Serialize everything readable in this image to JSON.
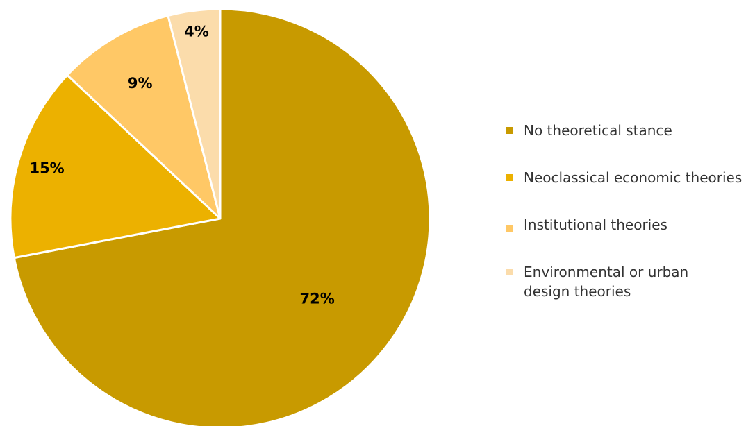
{
  "chart_data": {
    "type": "pie",
    "title": "",
    "slices": [
      {
        "label": "No theoretical stance",
        "value": 72,
        "display": "72%",
        "color": "#c89a00"
      },
      {
        "label": "Neoclassical economic theories",
        "value": 15,
        "display": "15%",
        "color": "#ecb100"
      },
      {
        "label": "Institutional theories",
        "value": 9,
        "display": "9%",
        "color": "#ffc866"
      },
      {
        "label": "Environmental or urban design theories",
        "value": 4,
        "display": "4%",
        "color": "#fbdcab"
      }
    ],
    "legend_placement": "right"
  },
  "legend": {
    "items": [
      {
        "label_line1": "No theoretical stance",
        "label_line2": ""
      },
      {
        "label_line1": "Neoclassical economic theories",
        "label_line2": ""
      },
      {
        "label_line1": "Institutional theories",
        "label_line2": ""
      },
      {
        "label_line1": "Environmental or urban",
        "label_line2": "design theories"
      }
    ]
  },
  "colors": {
    "background": "#ffffff",
    "slice_border": "#ffffff",
    "label_text": "#000000",
    "legend_text": "#333333"
  }
}
